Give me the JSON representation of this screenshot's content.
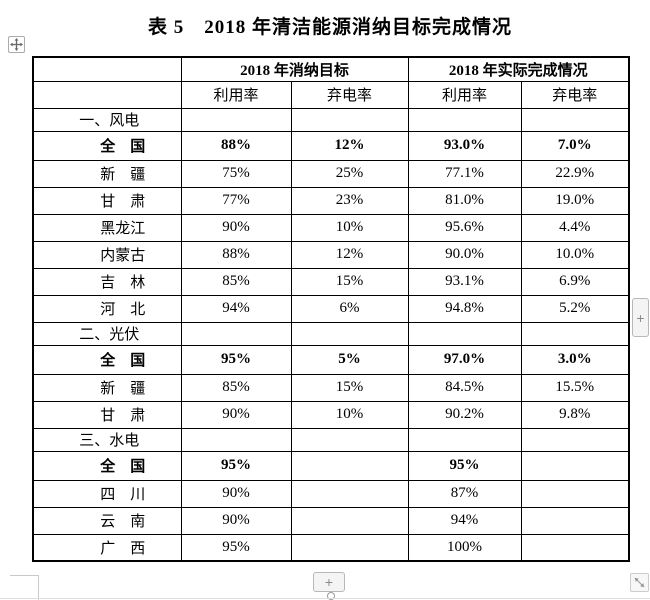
{
  "title": "表 5　2018 年清洁能源消纳目标完成情况",
  "table": {
    "group_headers": [
      "",
      "2018 年消纳目标",
      "2018 年实际完成情况"
    ],
    "sub_headers": [
      "利用率",
      "弃电率",
      "利用率",
      "弃电率"
    ],
    "rows": [
      {
        "type": "section",
        "label": "一、风电",
        "values": [
          "",
          "",
          "",
          ""
        ]
      },
      {
        "type": "total",
        "label": "全　国",
        "values": [
          "88%",
          "12%",
          "93.0%",
          "7.0%"
        ]
      },
      {
        "type": "data",
        "label": "新　疆",
        "values": [
          "75%",
          "25%",
          "77.1%",
          "22.9%"
        ]
      },
      {
        "type": "data",
        "label": "甘　肃",
        "values": [
          "77%",
          "23%",
          "81.0%",
          "19.0%"
        ]
      },
      {
        "type": "data",
        "label": "黑龙江",
        "values": [
          "90%",
          "10%",
          "95.6%",
          "4.4%"
        ]
      },
      {
        "type": "data",
        "label": "内蒙古",
        "values": [
          "88%",
          "12%",
          "90.0%",
          "10.0%"
        ]
      },
      {
        "type": "data",
        "label": "吉　林",
        "values": [
          "85%",
          "15%",
          "93.1%",
          "6.9%"
        ]
      },
      {
        "type": "data",
        "label": "河　北",
        "values": [
          "94%",
          "6%",
          "94.8%",
          "5.2%"
        ]
      },
      {
        "type": "section",
        "label": "二、光伏",
        "values": [
          "",
          "",
          "",
          ""
        ]
      },
      {
        "type": "total",
        "label": "全　国",
        "values": [
          "95%",
          "5%",
          "97.0%",
          "3.0%"
        ]
      },
      {
        "type": "data",
        "label": "新　疆",
        "values": [
          "85%",
          "15%",
          "84.5%",
          "15.5%"
        ]
      },
      {
        "type": "data",
        "label": "甘　肃",
        "values": [
          "90%",
          "10%",
          "90.2%",
          "9.8%"
        ]
      },
      {
        "type": "section",
        "label": "三、水电",
        "values": [
          "",
          "",
          "",
          ""
        ]
      },
      {
        "type": "total",
        "label": "全　国",
        "values": [
          "95%",
          "",
          "95%",
          ""
        ]
      },
      {
        "type": "data",
        "label": "四　川",
        "values": [
          "90%",
          "",
          "87%",
          ""
        ]
      },
      {
        "type": "data",
        "label": "云　南",
        "values": [
          "90%",
          "",
          "94%",
          ""
        ]
      },
      {
        "type": "data",
        "label": "广　西",
        "values": [
          "95%",
          "",
          "100%",
          ""
        ]
      }
    ]
  },
  "controls": {
    "move_handle_icon": "move-icon",
    "add_column_button": "+",
    "add_row_button": "+",
    "resize_handle_icon": "resize-diagonal-icon"
  },
  "colors": {
    "table_border": "#000000",
    "text": "#000000",
    "control_background": "#f4f4f4",
    "control_border": "#b8b8b8",
    "control_glyph": "#8a8a8a",
    "margin_mark": "#c9c9c9"
  }
}
